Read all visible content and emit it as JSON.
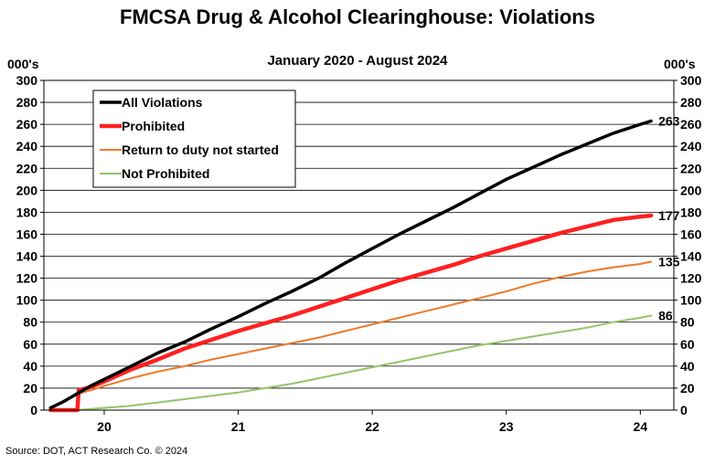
{
  "chart_data": {
    "type": "line",
    "title": "FMCSA Drug & Alcohol Clearinghouse: Violations",
    "subtitle": "January 2020 - August 2024",
    "ylabel_left": "000's",
    "ylabel_right": "000's",
    "source": "Source: DOT, ACT Research Co. © 2024",
    "ylim": [
      0,
      300
    ],
    "y_ticks": [
      0,
      20,
      40,
      60,
      80,
      100,
      120,
      140,
      160,
      180,
      200,
      220,
      240,
      260,
      280,
      300
    ],
    "x_range": [
      2019.55,
      2024.25
    ],
    "x_ticks": [
      {
        "label": "20",
        "at": 2020.0
      },
      {
        "label": "21",
        "at": 2021.0
      },
      {
        "label": "22",
        "at": 2022.0
      },
      {
        "label": "23",
        "at": 2023.0
      },
      {
        "label": "24",
        "at": 2024.0
      }
    ],
    "legend_position": "top-left",
    "series": [
      {
        "name": "All Violations",
        "color": "#000000",
        "width": 3.5,
        "end_label": "263",
        "x": [
          2019.6,
          2019.7,
          2019.8,
          2019.9,
          2020.0,
          2020.2,
          2020.4,
          2020.6,
          2020.8,
          2021.0,
          2021.2,
          2021.4,
          2021.6,
          2021.8,
          2022.0,
          2022.2,
          2022.4,
          2022.6,
          2022.8,
          2023.0,
          2023.2,
          2023.4,
          2023.6,
          2023.8,
          2024.0,
          2024.08
        ],
        "y": [
          2,
          8,
          15,
          22,
          28,
          40,
          52,
          62,
          74,
          85,
          97,
          108,
          120,
          134,
          147,
          160,
          172,
          184,
          197,
          210,
          221,
          232,
          242,
          252,
          260,
          263
        ]
      },
      {
        "name": "Prohibited",
        "color": "#ff2020",
        "width": 4.5,
        "end_label": "177",
        "x": [
          2019.6,
          2019.7,
          2019.8,
          2019.81,
          2019.9,
          2020.0,
          2020.2,
          2020.4,
          2020.6,
          2020.8,
          2021.0,
          2021.2,
          2021.4,
          2021.6,
          2021.8,
          2022.0,
          2022.2,
          2022.4,
          2022.6,
          2022.8,
          2023.0,
          2023.2,
          2023.4,
          2023.6,
          2023.8,
          2024.0,
          2024.08
        ],
        "y": [
          0,
          0,
          0,
          18,
          21,
          26,
          37,
          46,
          56,
          64,
          72,
          79,
          86,
          94,
          102,
          110,
          118,
          125,
          132,
          140,
          147,
          154,
          161,
          167,
          173,
          176,
          177
        ]
      },
      {
        "name": "Return to duty not started",
        "color": "#ee7a2a",
        "width": 2,
        "end_label": "135",
        "x": [
          2019.6,
          2019.8,
          2019.81,
          2019.9,
          2020.0,
          2020.2,
          2020.4,
          2020.6,
          2020.8,
          2021.0,
          2021.2,
          2021.4,
          2021.6,
          2021.8,
          2022.0,
          2022.2,
          2022.4,
          2022.6,
          2022.8,
          2023.0,
          2023.2,
          2023.4,
          2023.6,
          2023.8,
          2024.0,
          2024.08
        ],
        "y": [
          0,
          0,
          15,
          18,
          22,
          29,
          35,
          40,
          46,
          51,
          56,
          61,
          66,
          72,
          78,
          84,
          90,
          96,
          102,
          108,
          115,
          121,
          126,
          130,
          133,
          135
        ]
      },
      {
        "name": "Not Prohibited",
        "color": "#92c46a",
        "width": 2,
        "end_label": "86",
        "x": [
          2019.6,
          2019.8,
          2019.9,
          2020.0,
          2020.2,
          2020.4,
          2020.6,
          2020.8,
          2021.0,
          2021.2,
          2021.4,
          2021.6,
          2021.8,
          2022.0,
          2022.2,
          2022.4,
          2022.6,
          2022.8,
          2023.0,
          2023.2,
          2023.4,
          2023.6,
          2023.8,
          2024.0,
          2024.08
        ],
        "y": [
          0,
          0,
          1,
          2,
          4,
          7,
          10,
          13,
          16,
          20,
          24,
          29,
          34,
          39,
          44,
          49,
          54,
          59,
          63,
          67,
          71,
          75,
          80,
          84,
          86
        ]
      }
    ]
  }
}
